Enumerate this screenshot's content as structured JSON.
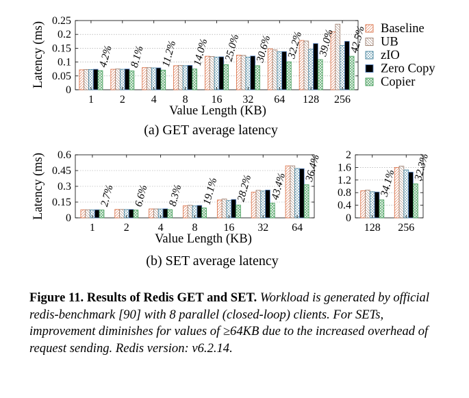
{
  "legend": [
    "Baseline",
    "UB",
    "zIO",
    "Zero Copy",
    "Copier"
  ],
  "colors": {
    "Baseline": "#d96a3f",
    "UB": "#9a7a6a",
    "zIO": "#3f7f9a",
    "Zero Copy": "#5a87c4",
    "Copier": "#3e9a55"
  },
  "chart_data": [
    {
      "id": "get",
      "type": "bar",
      "title": "(a) GET average latency",
      "xlabel": "Value Length (KB)",
      "ylabel": "Latency (ms)",
      "ylim": [
        0,
        0.25
      ],
      "yticks": [
        "0",
        "0.05",
        "0.1",
        "0.15",
        "0.2",
        "0.25"
      ],
      "categories": [
        "1",
        "2",
        "4",
        "8",
        "16",
        "32",
        "64",
        "128",
        "256"
      ],
      "series": [
        {
          "name": "Baseline",
          "values": [
            0.072,
            0.074,
            0.08,
            0.087,
            0.121,
            0.125,
            0.148,
            0.178,
            0.21
          ]
        },
        {
          "name": "UB",
          "values": [
            0.073,
            0.075,
            0.08,
            0.088,
            0.12,
            0.124,
            0.144,
            0.176,
            0.237
          ]
        },
        {
          "name": "zIO",
          "values": [
            0.073,
            0.074,
            0.079,
            0.087,
            0.118,
            0.118,
            0.137,
            0.146,
            0.16
          ]
        },
        {
          "name": "Zero Copy",
          "values": [
            0.074,
            0.075,
            0.079,
            0.088,
            0.119,
            0.122,
            0.138,
            0.167,
            0.175
          ]
        },
        {
          "name": "Copier",
          "values": [
            0.069,
            0.068,
            0.071,
            0.075,
            0.091,
            0.087,
            0.101,
            0.109,
            0.121
          ]
        }
      ],
      "annotations": [
        "4.2%",
        "8.1%",
        "11.2%",
        "14.0%",
        "25.0%",
        "30.6%",
        "32.2%",
        "39.0%",
        "42.5%"
      ]
    },
    {
      "id": "set-small",
      "type": "bar",
      "title": "(b) SET average latency",
      "xlabel": "Value Length (KB)",
      "ylabel": "Latency (ms)",
      "ylim": [
        0,
        0.6
      ],
      "yticks": [
        "0",
        "0.15",
        "0.3",
        "0.45",
        "0.6"
      ],
      "categories": [
        "1",
        "2",
        "4",
        "8",
        "16",
        "32",
        "64"
      ],
      "series": [
        {
          "name": "Baseline",
          "values": [
            0.077,
            0.08,
            0.085,
            0.115,
            0.17,
            0.245,
            0.495
          ]
        },
        {
          "name": "UB",
          "values": [
            0.077,
            0.08,
            0.085,
            0.12,
            0.18,
            0.262,
            0.495
          ]
        },
        {
          "name": "zIO",
          "values": [
            0.076,
            0.079,
            0.084,
            0.113,
            0.165,
            0.255,
            0.47
          ]
        },
        {
          "name": "Zero Copy",
          "values": [
            0.077,
            0.08,
            0.086,
            0.118,
            0.175,
            0.265,
            0.468
          ]
        },
        {
          "name": "Copier",
          "values": [
            0.075,
            0.074,
            0.078,
            0.094,
            0.122,
            0.14,
            0.315
          ]
        }
      ],
      "annotations": [
        "2.7%",
        "6.6%",
        "8.3%",
        "19.1%",
        "28.2%",
        "43.4%",
        "36.4%"
      ]
    },
    {
      "id": "set-large",
      "type": "bar",
      "title": "",
      "xlabel": "",
      "ylabel": "",
      "ylim": [
        0,
        2
      ],
      "yticks": [
        "0",
        "0.4",
        "0.8",
        "1.2",
        "1.6",
        "2"
      ],
      "categories": [
        "128",
        "256"
      ],
      "series": [
        {
          "name": "Baseline",
          "values": [
            0.86,
            1.6
          ]
        },
        {
          "name": "UB",
          "values": [
            0.88,
            1.64
          ]
        },
        {
          "name": "zIO",
          "values": [
            0.83,
            1.52
          ]
        },
        {
          "name": "Zero Copy",
          "values": [
            0.82,
            1.45
          ]
        },
        {
          "name": "Copier",
          "values": [
            0.57,
            1.08
          ]
        }
      ],
      "annotations": [
        "34.1%",
        "32.3%"
      ]
    }
  ],
  "caption": {
    "bold": "Figure 11. Results of Redis GET and SET.",
    "text": "Workload is generated by official redis-benchmark [90] with 8 parallel (closed-loop) clients. For SETs, improvement diminishes for values of ≥64KB due to the increased overhead of request sending. Redis version: v6.2.14."
  }
}
